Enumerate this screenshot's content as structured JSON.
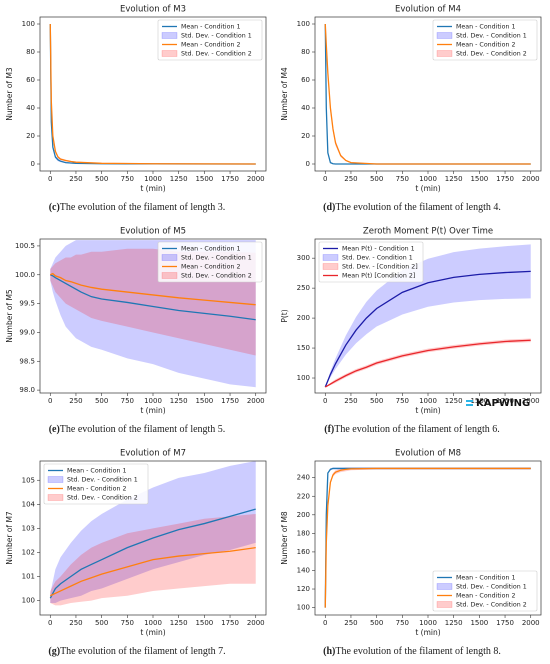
{
  "watermark": "KAPWING",
  "chart_data": [
    {
      "type": "line",
      "title": "Evolution of M3",
      "xlabel": "t (min)",
      "ylabel": "Number of M3",
      "caption": {
        "label": "(c)",
        "text": "The evolution of the filament of length 3."
      },
      "legend": "upper right",
      "x": [
        0,
        10,
        25,
        50,
        75,
        100,
        150,
        200,
        250,
        500,
        1000,
        1500,
        2000
      ],
      "xlim": [
        -100,
        2100
      ],
      "xticks": [
        0,
        250,
        500,
        750,
        1000,
        1250,
        1500,
        1750,
        2000
      ],
      "ylim": [
        -5,
        105
      ],
      "yticks": [
        0,
        20,
        40,
        60,
        80,
        100
      ],
      "series": [
        {
          "name": "Mean - Condition 1",
          "color": "#1f77b4",
          "values": [
            100,
            30,
            12,
            5,
            3,
            2,
            1,
            0.7,
            0.5,
            0.2,
            0.1,
            0,
            0
          ]
        },
        {
          "name": "Std. Dev. - Condition 1",
          "color": "#0000ff",
          "type": "band",
          "lower": [
            100,
            27,
            10,
            4,
            2,
            1.3,
            0.5,
            0.3,
            0.2,
            0,
            0,
            0,
            0
          ],
          "upper": [
            100,
            33,
            14,
            6,
            4,
            2.7,
            1.5,
            1.1,
            0.8,
            0.4,
            0.2,
            0,
            0
          ]
        },
        {
          "name": "Mean - Condition 2",
          "color": "#ff7f0e",
          "values": [
            100,
            45,
            20,
            9,
            5,
            3.5,
            2.5,
            1.8,
            1.3,
            0.5,
            0.2,
            0.1,
            0
          ]
        },
        {
          "name": "Std. Dev. - Condition 2",
          "color": "#ff0000",
          "type": "band",
          "lower": [
            100,
            42,
            18,
            8,
            4,
            2.8,
            1.9,
            1.3,
            0.9,
            0.3,
            0.1,
            0,
            0
          ],
          "upper": [
            100,
            48,
            22,
            10,
            6,
            4.2,
            3.1,
            2.3,
            1.7,
            0.7,
            0.3,
            0.2,
            0
          ]
        }
      ]
    },
    {
      "type": "line",
      "title": "Evolution of M4",
      "xlabel": "t (min)",
      "ylabel": "Number of M4",
      "caption": {
        "label": "(d)",
        "text": "The evolution of the filament of length 4."
      },
      "legend": "upper right",
      "x": [
        0,
        10,
        25,
        50,
        75,
        100,
        150,
        200,
        250,
        500,
        1000,
        1500,
        2000
      ],
      "xlim": [
        -100,
        2100
      ],
      "xticks": [
        0,
        250,
        500,
        750,
        1000,
        1250,
        1500,
        1750,
        2000
      ],
      "ylim": [
        -5,
        105
      ],
      "yticks": [
        0,
        20,
        40,
        60,
        80,
        100
      ],
      "series": [
        {
          "name": "Mean - Condition 1",
          "color": "#1f77b4",
          "values": [
            100,
            40,
            8,
            1,
            0.2,
            0,
            0,
            0,
            0,
            0,
            0,
            0,
            0
          ]
        },
        {
          "name": "Std. Dev. - Condition 1",
          "color": "#0000ff",
          "type": "band",
          "lower": [
            100,
            37,
            7,
            0.5,
            0,
            0,
            0,
            0,
            0,
            0,
            0,
            0,
            0
          ],
          "upper": [
            100,
            43,
            9,
            1.5,
            0.4,
            0,
            0,
            0,
            0,
            0,
            0,
            0,
            0
          ]
        },
        {
          "name": "Mean - Condition 2",
          "color": "#ff7f0e",
          "values": [
            100,
            85,
            65,
            40,
            25,
            15,
            6,
            2.5,
            1,
            0,
            0,
            0,
            0
          ]
        },
        {
          "name": "Std. Dev. - Condition 2",
          "color": "#ff0000",
          "type": "band",
          "lower": [
            100,
            83,
            62,
            37,
            23,
            13,
            5,
            2,
            0.7,
            0,
            0,
            0,
            0
          ],
          "upper": [
            100,
            87,
            68,
            43,
            27,
            17,
            7,
            3,
            1.3,
            0,
            0,
            0,
            0
          ]
        }
      ]
    },
    {
      "type": "line",
      "title": "Evolution of M5",
      "xlabel": "t (min)",
      "ylabel": "Number of M5",
      "caption": {
        "label": "(e)",
        "text": "The evolution of the filament of length 5."
      },
      "legend": "upper right",
      "x": [
        0,
        25,
        50,
        100,
        150,
        200,
        250,
        300,
        400,
        500,
        750,
        1000,
        1250,
        1500,
        1750,
        2000
      ],
      "xlim": [
        -100,
        2100
      ],
      "xticks": [
        0,
        250,
        500,
        750,
        1000,
        1250,
        1500,
        1750,
        2000
      ],
      "ylim": [
        97.95,
        100.62
      ],
      "yticks": [
        {
          "value": 98,
          "label": "98.0"
        },
        98.5,
        {
          "value": 99,
          "label": "99.0"
        },
        99.5,
        {
          "value": 100,
          "label": "100.0"
        },
        100.5
      ],
      "series": [
        {
          "name": "Mean - Condition 1",
          "color": "#1f77b4",
          "values": [
            100,
            99.98,
            99.95,
            99.9,
            99.85,
            99.8,
            99.75,
            99.7,
            99.62,
            99.58,
            99.52,
            99.45,
            99.38,
            99.33,
            99.28,
            99.22
          ]
        },
        {
          "name": "Std. Dev. - Condition 1",
          "color": "#0000ff",
          "type": "band",
          "lower": [
            99.9,
            99.7,
            99.55,
            99.3,
            99.1,
            99.0,
            98.9,
            98.85,
            98.75,
            98.7,
            98.55,
            98.45,
            98.3,
            98.2,
            98.1,
            98.05
          ],
          "upper": [
            100.1,
            100.2,
            100.3,
            100.4,
            100.5,
            100.55,
            100.6,
            100.6,
            100.6,
            100.6,
            100.6,
            100.6,
            100.6,
            100.6,
            100.6,
            100.6
          ]
        },
        {
          "name": "Mean - Condition 2",
          "color": "#ff7f0e",
          "values": [
            100,
            100.02,
            99.98,
            99.95,
            99.9,
            99.88,
            99.85,
            99.82,
            99.78,
            99.75,
            99.7,
            99.65,
            99.6,
            99.56,
            99.52,
            99.48
          ]
        },
        {
          "name": "Std. Dev. - Condition 2",
          "color": "#ff0000",
          "type": "band",
          "lower": [
            99.9,
            99.8,
            99.7,
            99.6,
            99.5,
            99.45,
            99.4,
            99.35,
            99.25,
            99.2,
            99.1,
            99.0,
            98.9,
            98.8,
            98.7,
            98.6
          ],
          "upper": [
            100.1,
            100.15,
            100.2,
            100.25,
            100.3,
            100.3,
            100.35,
            100.35,
            100.4,
            100.4,
            100.45,
            100.45,
            100.4,
            100.4,
            100.4,
            100.38
          ]
        }
      ]
    },
    {
      "type": "line",
      "title": "Zeroth Moment P(t) Over Time",
      "xlabel": "t (min)",
      "ylabel": "P(t)",
      "caption": {
        "label": "(f)",
        "text": "The evolution of the filament of length 6."
      },
      "legend": "upper left",
      "x": [
        0,
        50,
        100,
        200,
        300,
        400,
        500,
        750,
        1000,
        1250,
        1500,
        1750,
        2000
      ],
      "xlim": [
        -100,
        2100
      ],
      "xticks": [
        0,
        250,
        500,
        750,
        1000,
        1250,
        1500,
        1750,
        2000
      ],
      "ylim": [
        75,
        332
      ],
      "yticks": [
        100,
        150,
        200,
        250,
        300
      ],
      "series": [
        {
          "name": "Mean P(t) - Condition 1",
          "color": "#1c1ca8",
          "values": [
            85,
            106,
            124,
            155,
            180,
            200,
            216,
            243,
            259,
            268,
            273,
            276,
            278
          ]
        },
        {
          "name": "Std. Dev. - Condition 1",
          "color": "#0000ff",
          "type": "band",
          "lower": [
            85,
            101,
            115,
            139,
            158,
            173,
            186,
            206,
            219,
            226,
            230,
            232,
            233
          ],
          "upper": [
            85,
            111,
            133,
            171,
            202,
            227,
            246,
            280,
            299,
            310,
            316,
            320,
            323
          ]
        },
        {
          "name": "Std. Dev. - [Condition 2]",
          "color": "#ff0000",
          "type": "band",
          "lower": [
            85,
            88,
            92,
            101,
            109,
            115,
            122,
            134,
            143,
            149,
            154,
            158,
            160
          ],
          "upper": [
            85,
            92,
            98,
            107,
            115,
            121,
            128,
            140,
            149,
            155,
            160,
            164,
            166
          ]
        },
        {
          "name": "Mean P(t) [Condition 2]",
          "color": "#e8262b",
          "values": [
            85,
            90,
            95,
            104,
            112,
            118,
            125,
            137,
            146,
            152,
            157,
            161,
            163
          ]
        }
      ]
    },
    {
      "type": "line",
      "title": "Evolution of M7",
      "xlabel": "t (min)",
      "ylabel": "Number of M7",
      "caption": {
        "label": "(g)",
        "text": "The evolution of the filament of length 7."
      },
      "legend": "upper left",
      "x": [
        0,
        50,
        100,
        200,
        300,
        400,
        500,
        750,
        1000,
        1250,
        1500,
        1750,
        2000
      ],
      "xlim": [
        -100,
        2100
      ],
      "xticks": [
        0,
        250,
        500,
        750,
        1000,
        1250,
        1500,
        1750,
        2000
      ],
      "ylim": [
        99.4,
        105.8
      ],
      "yticks": [
        100,
        101,
        102,
        103,
        104,
        105
      ],
      "series": [
        {
          "name": "Mean - Condition 1",
          "color": "#1f77b4",
          "values": [
            100.1,
            100.5,
            100.7,
            101.0,
            101.3,
            101.5,
            101.7,
            102.2,
            102.6,
            102.95,
            103.2,
            103.5,
            103.8
          ]
        },
        {
          "name": "Std. Dev. - Condition 1",
          "color": "#0000ff",
          "type": "band",
          "lower": [
            99.9,
            99.9,
            100.0,
            100.1,
            100.2,
            100.4,
            100.5,
            100.9,
            101.3,
            101.6,
            101.9,
            102.1,
            102.4
          ],
          "upper": [
            100.3,
            101.3,
            101.8,
            102.4,
            102.9,
            103.3,
            103.6,
            104.2,
            104.7,
            105.1,
            105.3,
            105.6,
            105.8
          ]
        },
        {
          "name": "Mean - Condition 2",
          "color": "#ff7f0e",
          "values": [
            100.2,
            100.3,
            100.4,
            100.6,
            100.8,
            100.95,
            101.1,
            101.4,
            101.7,
            101.85,
            101.95,
            102.05,
            102.2
          ]
        },
        {
          "name": "Std. Dev. - Condition 2",
          "color": "#ff0000",
          "type": "band",
          "lower": [
            99.9,
            99.8,
            99.8,
            99.9,
            99.95,
            100.0,
            100.1,
            100.2,
            100.4,
            100.5,
            100.6,
            100.7,
            100.7
          ],
          "upper": [
            100.4,
            100.8,
            101.0,
            101.5,
            101.9,
            102.2,
            102.4,
            102.8,
            103.0,
            103.2,
            103.4,
            103.5,
            103.6
          ]
        }
      ]
    },
    {
      "type": "line",
      "title": "Evolution of M8",
      "xlabel": "t (min)",
      "ylabel": "Number of M8",
      "caption": {
        "label": "(h)",
        "text": "The evolution of the filament of length 8."
      },
      "legend": "lower right",
      "x": [
        0,
        10,
        25,
        50,
        75,
        100,
        150,
        200,
        250,
        500,
        1000,
        1500,
        2000
      ],
      "xlim": [
        -100,
        2100
      ],
      "xticks": [
        0,
        250,
        500,
        750,
        1000,
        1250,
        1500,
        1750,
        2000
      ],
      "ylim": [
        92,
        258
      ],
      "yticks": [
        100,
        120,
        140,
        160,
        180,
        200,
        220,
        240
      ],
      "series": [
        {
          "name": "Mean - Condition 1",
          "color": "#1f77b4",
          "values": [
            100,
            200,
            245,
            249,
            250,
            250,
            250,
            250,
            250,
            250,
            250,
            250,
            250
          ]
        },
        {
          "name": "Std. Dev. - Condition 1",
          "color": "#0000ff",
          "type": "band",
          "lower": [
            100,
            198,
            244,
            248,
            249,
            249,
            249,
            249,
            249,
            249,
            249,
            249,
            249
          ],
          "upper": [
            100,
            202,
            246,
            250,
            251,
            251,
            251,
            251,
            251,
            251,
            251,
            251,
            251
          ]
        },
        {
          "name": "Mean - Condition 2",
          "color": "#ff7f0e",
          "values": [
            100,
            170,
            210,
            235,
            243,
            246,
            248,
            249,
            249.5,
            250,
            250,
            250,
            250
          ]
        },
        {
          "name": "Std. Dev. - Condition 2",
          "color": "#ff0000",
          "type": "band",
          "lower": [
            100,
            168,
            208,
            233,
            241,
            244,
            246,
            247,
            248,
            249,
            249,
            249,
            249
          ],
          "upper": [
            100,
            172,
            212,
            237,
            245,
            248,
            250,
            251,
            251,
            251,
            251,
            251,
            251
          ]
        }
      ]
    }
  ]
}
